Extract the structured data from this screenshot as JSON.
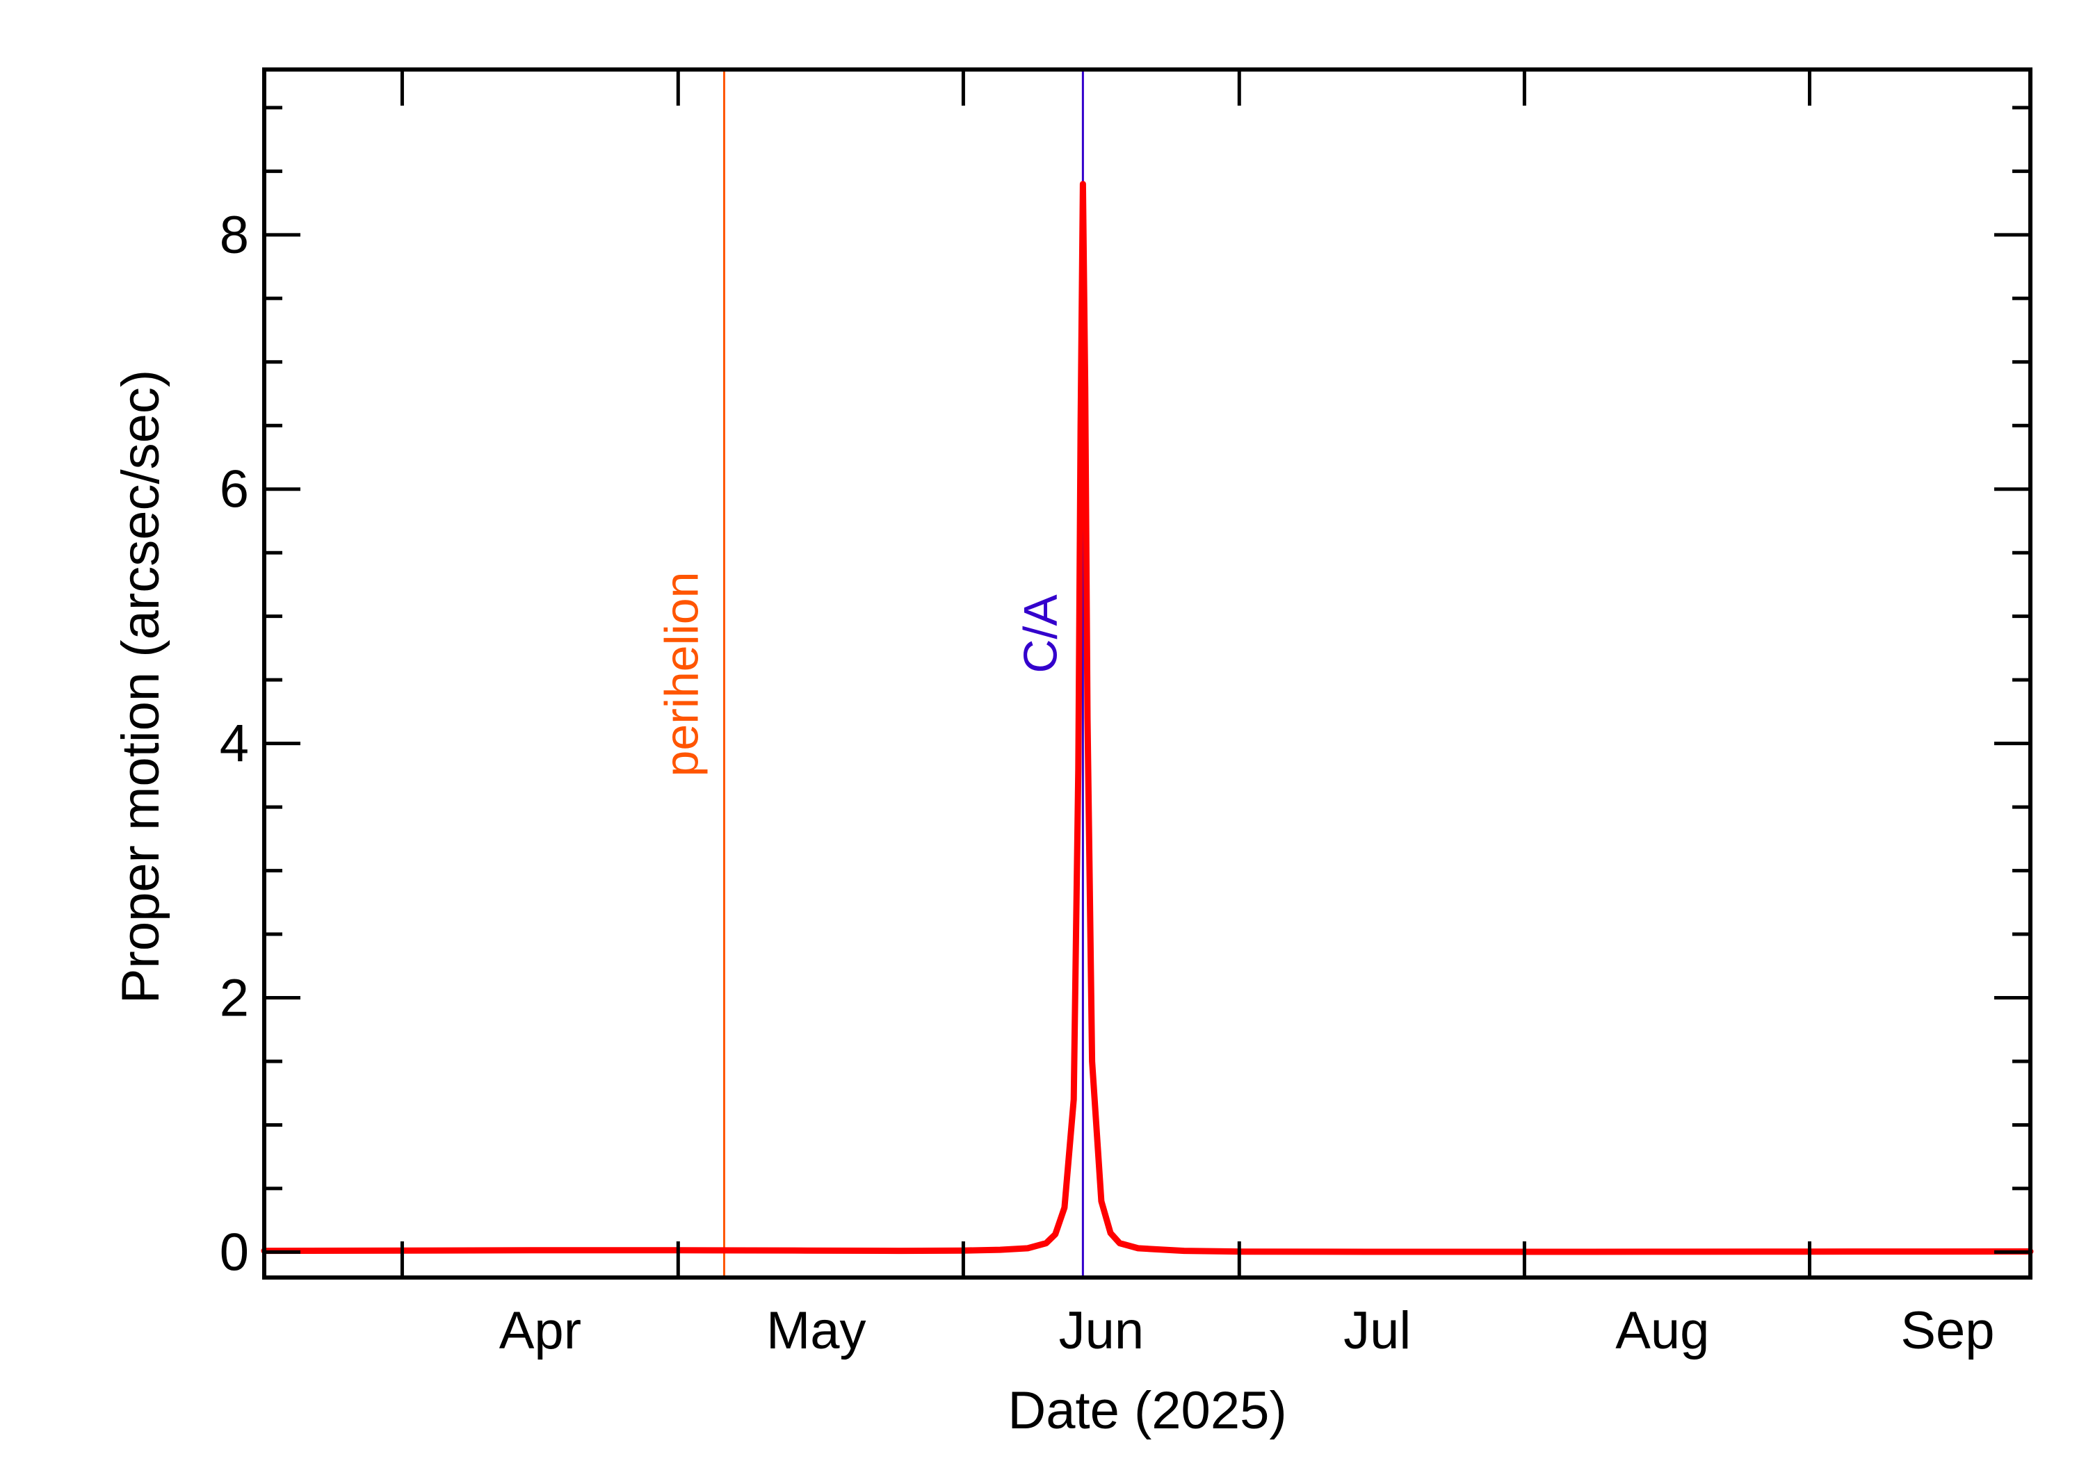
{
  "chart_data": {
    "type": "line",
    "xlabel": "Date (2025)",
    "ylabel": "Proper motion (arcsec/sec)",
    "xlim": [
      "2025-03-17",
      "2025-09-25"
    ],
    "ylim": [
      -0.2,
      9.3
    ],
    "x_tick_labels": [
      {
        "date": "2025-04-01",
        "label": "Apr"
      },
      {
        "date": "2025-05-01",
        "label": "May"
      },
      {
        "date": "2025-06-01",
        "label": "Jun"
      },
      {
        "date": "2025-07-01",
        "label": "Jul"
      },
      {
        "date": "2025-08-01",
        "label": "Aug"
      },
      {
        "date": "2025-09-01",
        "label": "Sep"
      }
    ],
    "y_ticks": [
      0,
      2,
      4,
      6,
      8
    ],
    "y_tick_labels": [
      "0",
      "2",
      "4",
      "6",
      "8"
    ],
    "markers": [
      {
        "label": "perihelion",
        "date": "2025-05-06",
        "color": "#ff5500"
      },
      {
        "label": "C/A",
        "date": "2025-06-14",
        "color": "#3300cc"
      }
    ],
    "series": [
      {
        "color": "#ff0000",
        "points": [
          [
            "2025-03-17",
            0.01
          ],
          [
            "2025-04-01",
            0.012
          ],
          [
            "2025-04-15",
            0.014
          ],
          [
            "2025-05-01",
            0.014
          ],
          [
            "2025-05-15",
            0.012
          ],
          [
            "2025-05-25",
            0.01
          ],
          [
            "2025-06-01",
            0.012
          ],
          [
            "2025-06-05",
            0.018
          ],
          [
            "2025-06-08",
            0.03
          ],
          [
            "2025-06-10",
            0.07
          ],
          [
            "2025-06-11",
            0.14
          ],
          [
            "2025-06-12",
            0.35
          ],
          [
            "2025-06-13",
            1.2
          ],
          [
            "2025-06-13T12:00",
            3.8
          ],
          [
            "2025-06-13T18:00",
            6.5
          ],
          [
            "2025-06-14",
            8.4
          ],
          [
            "2025-06-14T06:00",
            6.8
          ],
          [
            "2025-06-14T12:00",
            4.2
          ],
          [
            "2025-06-15",
            1.5
          ],
          [
            "2025-06-16",
            0.4
          ],
          [
            "2025-06-17",
            0.15
          ],
          [
            "2025-06-18",
            0.07
          ],
          [
            "2025-06-20",
            0.03
          ],
          [
            "2025-06-25",
            0.01
          ],
          [
            "2025-07-01",
            0.004
          ],
          [
            "2025-07-15",
            0.002
          ],
          [
            "2025-08-01",
            0.002
          ],
          [
            "2025-08-15",
            0.003
          ],
          [
            "2025-09-01",
            0.004
          ],
          [
            "2025-09-25",
            0.005
          ]
        ]
      }
    ]
  }
}
